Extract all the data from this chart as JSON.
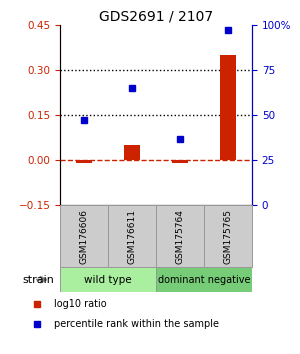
{
  "title": "GDS2691 / 2107",
  "samples": [
    "GSM176606",
    "GSM176611",
    "GSM175764",
    "GSM175765"
  ],
  "log10_ratio": [
    -0.01,
    0.05,
    -0.01,
    0.35
  ],
  "percentile_rank": [
    47,
    65,
    37,
    97
  ],
  "ylim_left": [
    -0.15,
    0.45
  ],
  "yticks_left": [
    -0.15,
    0.0,
    0.15,
    0.3,
    0.45
  ],
  "ylim_right": [
    0,
    100
  ],
  "yticks_right": [
    0,
    25,
    50,
    75,
    100
  ],
  "yticklabels_right": [
    "0",
    "25",
    "50",
    "75",
    "100%"
  ],
  "hlines_dotted": [
    0.15,
    0.3
  ],
  "hline_dashed": 0.0,
  "bar_width": 0.35,
  "colors": {
    "log10_bar": "#cc2200",
    "percentile_marker": "#0000cc",
    "dashed_line": "#cc2200",
    "dotted_line": "#000000",
    "left_tick_color": "#cc2200",
    "right_tick_color": "#0000cc",
    "title_color": "#000000",
    "sample_box_fill": "#cccccc",
    "sample_box_edge": "#999999",
    "wildtype_fill": "#aaeea0",
    "dominant_fill": "#77cc77",
    "arrow_color": "#888888"
  },
  "legend_items": [
    {
      "label": "log10 ratio",
      "color": "#cc2200",
      "marker": "s"
    },
    {
      "label": "percentile rank within the sample",
      "color": "#0000cc",
      "marker": "s"
    }
  ],
  "strain_label": "strain"
}
